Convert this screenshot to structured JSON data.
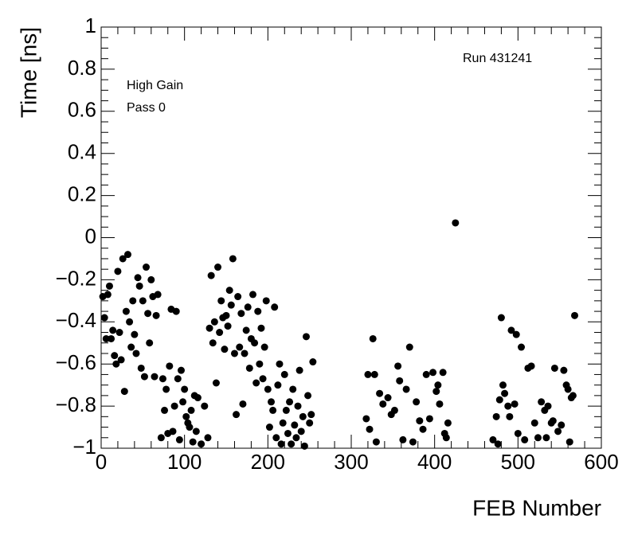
{
  "chart_data": {
    "type": "scatter",
    "xlabel": "FEB Number",
    "ylabel": "Time [ns]",
    "annotations": [
      "Run 431241",
      "High Gain",
      "Pass 0"
    ],
    "xlim": [
      0,
      600
    ],
    "ylim": [
      -1,
      1
    ],
    "xticks": [
      0,
      100,
      200,
      300,
      400,
      500,
      600
    ],
    "yticks": [
      {
        "value": -1,
        "label": "−1"
      },
      {
        "value": -0.8,
        "label": "−0.8"
      },
      {
        "value": -0.6,
        "label": "−0.6"
      },
      {
        "value": -0.4,
        "label": "−0.4"
      },
      {
        "value": -0.2,
        "label": "−0.2"
      },
      0,
      0.2,
      0.4,
      0.6,
      0.8,
      1
    ],
    "color": "#000000",
    "series": [
      {
        "x": [
          2,
          4,
          6,
          8,
          10,
          12,
          14,
          16,
          18,
          20,
          22,
          24,
          26,
          28,
          30,
          32,
          34,
          36,
          38,
          40,
          42,
          44,
          46,
          48,
          50,
          52,
          54,
          56,
          58,
          60,
          62,
          64,
          66,
          68,
          72,
          74,
          76,
          78,
          80,
          82,
          84,
          86,
          88,
          90,
          92,
          94,
          96,
          98,
          100,
          102,
          104,
          106,
          108,
          110,
          112,
          114,
          116,
          120,
          124,
          128,
          130,
          132,
          134,
          136,
          138,
          140,
          142,
          144,
          146,
          148,
          150,
          152,
          154,
          156,
          158,
          160,
          162,
          164,
          166,
          168,
          170,
          172,
          174,
          176,
          178,
          180,
          182,
          184,
          186,
          188,
          190,
          192,
          194,
          196,
          198,
          200,
          202,
          204,
          206,
          208,
          210,
          212,
          214,
          216,
          218,
          220,
          222,
          224,
          226,
          228,
          230,
          232,
          234,
          236,
          238,
          240,
          242,
          244,
          246,
          248,
          250,
          252,
          254,
          318,
          320,
          322,
          326,
          328,
          330,
          334,
          338,
          344,
          348,
          352,
          356,
          358,
          362,
          366,
          370,
          374,
          378,
          382,
          386,
          390,
          394,
          398,
          402,
          404,
          406,
          410,
          412,
          414,
          416,
          425,
          470,
          474,
          476,
          478,
          480,
          482,
          484,
          488,
          490,
          492,
          496,
          498,
          500,
          504,
          508,
          512,
          516,
          520,
          524,
          528,
          532,
          534,
          536,
          540,
          542,
          544,
          548,
          552,
          555,
          558,
          560,
          562,
          564,
          566,
          568
        ],
        "values": [
          -0.28,
          -0.38,
          -0.48,
          -0.27,
          -0.23,
          -0.48,
          -0.44,
          -0.56,
          -0.6,
          -0.16,
          -0.45,
          -0.58,
          -0.1,
          -0.73,
          -0.35,
          -0.08,
          -0.4,
          -0.52,
          -0.3,
          -0.46,
          -0.55,
          -0.19,
          -0.23,
          -0.62,
          -0.3,
          -0.66,
          -0.14,
          -0.36,
          -0.5,
          -0.2,
          -0.28,
          -0.66,
          -0.37,
          -0.27,
          -0.95,
          -0.67,
          -0.82,
          -0.72,
          -0.93,
          -0.61,
          -0.34,
          -0.92,
          -0.8,
          -0.35,
          -0.67,
          -0.96,
          -0.63,
          -0.78,
          -0.72,
          -0.85,
          -0.88,
          -0.9,
          -0.82,
          -0.97,
          -0.75,
          -0.92,
          -0.76,
          -0.98,
          -0.8,
          -0.95,
          -0.43,
          -0.18,
          -0.5,
          -0.4,
          -0.69,
          -0.14,
          -0.45,
          -0.3,
          -0.38,
          -0.53,
          -0.37,
          -0.42,
          -0.25,
          -0.32,
          -0.1,
          -0.55,
          -0.84,
          -0.28,
          -0.52,
          -0.36,
          -0.79,
          -0.55,
          -0.44,
          -0.33,
          -0.62,
          -0.48,
          -0.27,
          -0.5,
          -0.69,
          -0.35,
          -0.6,
          -0.43,
          -0.67,
          -0.52,
          -0.3,
          -0.72,
          -0.9,
          -0.78,
          -0.82,
          -0.33,
          -0.95,
          -0.7,
          -0.6,
          -0.98,
          -0.88,
          -0.65,
          -0.82,
          -0.93,
          -0.78,
          -0.98,
          -0.72,
          -0.89,
          -0.95,
          -0.8,
          -0.63,
          -0.92,
          -0.85,
          -0.99,
          -0.47,
          -0.75,
          -0.88,
          -0.84,
          -0.59,
          -0.86,
          -0.65,
          -0.91,
          -0.48,
          -0.65,
          -0.97,
          -0.74,
          -0.79,
          -0.76,
          -0.84,
          -0.82,
          -0.61,
          -0.68,
          -0.96,
          -0.72,
          -0.52,
          -0.97,
          -0.78,
          -0.87,
          -0.91,
          -0.65,
          -0.86,
          -0.64,
          -0.73,
          -0.7,
          -0.79,
          -0.64,
          -0.93,
          -0.95,
          -0.88,
          0.07,
          -0.96,
          -0.85,
          -0.98,
          -0.77,
          -0.38,
          -0.7,
          -0.74,
          -0.8,
          -0.85,
          -0.44,
          -0.79,
          -0.46,
          -0.93,
          -0.52,
          -0.96,
          -0.62,
          -0.61,
          -0.88,
          -0.95,
          -0.78,
          -0.82,
          -0.95,
          -0.8,
          -0.88,
          -0.87,
          -0.62,
          -0.92,
          -0.89,
          -0.63,
          -0.7,
          -0.72,
          -0.97,
          -0.76,
          -0.75,
          -0.37
        ]
      }
    ]
  }
}
